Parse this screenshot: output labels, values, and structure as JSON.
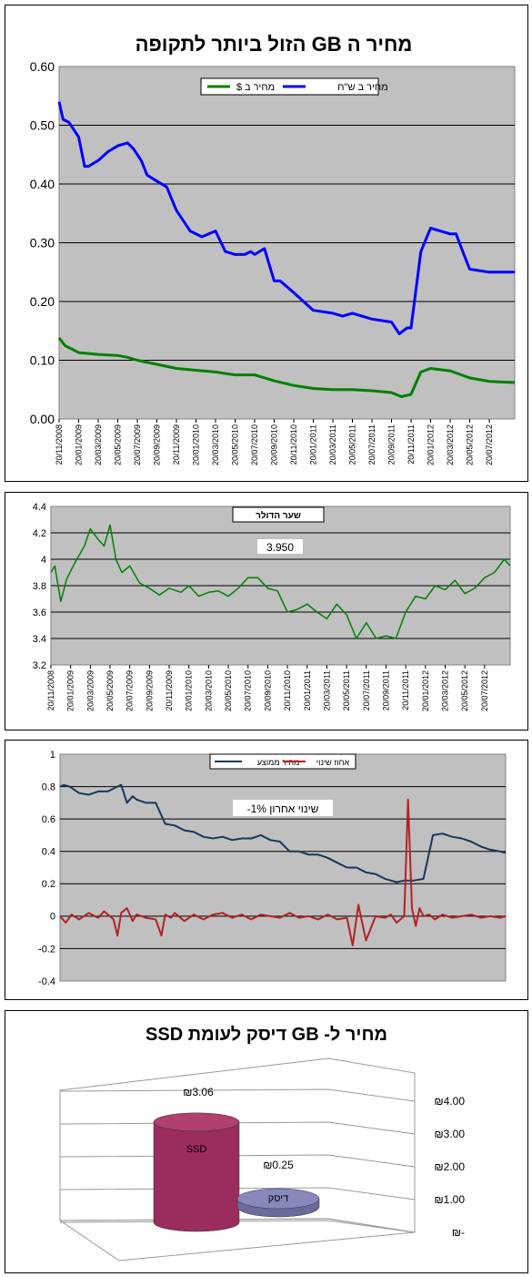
{
  "chart_data": [
    {
      "type": "line",
      "title": "מחיר ה GB הזול ביותר לתקופה",
      "ylim": [
        0,
        0.6
      ],
      "yticks": [
        "0.00",
        "0.10",
        "0.20",
        "0.30",
        "0.40",
        "0.50",
        "0.60"
      ],
      "xticks": [
        "20/11/2008",
        "20/01/2009",
        "20/03/2009",
        "20/05/2009",
        "20/07/2009",
        "20/09/2009",
        "20/11/2009",
        "20/01/2010",
        "20/03/2010",
        "20/05/2010",
        "20/07/2010",
        "20/09/2010",
        "20/11/2010",
        "20/01/2011",
        "20/03/2011",
        "20/05/2011",
        "20/07/2011",
        "20/09/2011",
        "20/11/2011",
        "20/01/2012",
        "20/03/2012",
        "20/05/2012",
        "20/07/2012"
      ],
      "grid": true,
      "legend": "top-center",
      "series": [
        {
          "name": "מחיר ב ש\"ח",
          "color": "#0000ff",
          "x": [
            0,
            0.2,
            0.5,
            1,
            1.3,
            1.5,
            2,
            2.5,
            3,
            3.5,
            3.8,
            4.2,
            4.5,
            5,
            5.5,
            6,
            6.3,
            6.7,
            7,
            7.3,
            8,
            8.5,
            9,
            9.5,
            9.8,
            10,
            10.5,
            11,
            11.3,
            12,
            13,
            14,
            14.5,
            15,
            16,
            17,
            17.4,
            17.8,
            18,
            18.5,
            19,
            20,
            20.3,
            20.7,
            21,
            22,
            22.5,
            23.3
          ],
          "values": [
            0.54,
            0.51,
            0.505,
            0.48,
            0.43,
            0.43,
            0.44,
            0.455,
            0.465,
            0.47,
            0.46,
            0.44,
            0.415,
            0.405,
            0.395,
            0.355,
            0.34,
            0.32,
            0.315,
            0.31,
            0.32,
            0.285,
            0.28,
            0.28,
            0.285,
            0.28,
            0.29,
            0.235,
            0.235,
            0.215,
            0.185,
            0.18,
            0.175,
            0.18,
            0.17,
            0.165,
            0.145,
            0.155,
            0.155,
            0.285,
            0.325,
            0.315,
            0.315,
            0.28,
            0.255,
            0.25,
            0.25,
            0.25
          ]
        },
        {
          "name": "מחיר ב $",
          "color": "#008000",
          "x": [
            0,
            0.3,
            1,
            2,
            3,
            3.5,
            4,
            5,
            6,
            7,
            8,
            9,
            10,
            11,
            12,
            13,
            14,
            15,
            16,
            17,
            17.5,
            18,
            18.5,
            19,
            20,
            21,
            22,
            23.3
          ],
          "values": [
            0.138,
            0.125,
            0.113,
            0.11,
            0.108,
            0.105,
            0.1,
            0.093,
            0.086,
            0.083,
            0.08,
            0.075,
            0.075,
            0.065,
            0.057,
            0.052,
            0.05,
            0.05,
            0.048,
            0.045,
            0.038,
            0.042,
            0.08,
            0.086,
            0.082,
            0.07,
            0.064,
            0.062
          ]
        }
      ]
    },
    {
      "type": "line",
      "title": "שער הדולר",
      "annotation": "3.950",
      "ylim": [
        3.2,
        4.4
      ],
      "yticks": [
        "3.2",
        "3.4",
        "3.6",
        "3.8",
        "4",
        "4.2",
        "4.4"
      ],
      "xticks": [
        "20/11/2008",
        "20/01/2009",
        "20/03/2009",
        "20/05/2009",
        "20/07/2009",
        "20/09/2009",
        "20/11/2009",
        "20/01/2010",
        "20/03/2010",
        "20/05/2010",
        "20/07/2010",
        "20/09/2010",
        "20/11/2010",
        "20/01/2011",
        "20/03/2011",
        "20/05/2011",
        "20/07/2011",
        "20/09/2011",
        "20/11/2011",
        "20/01/2012",
        "20/03/2012",
        "20/05/2012",
        "20/07/2012"
      ],
      "grid": true,
      "series": [
        {
          "name": "",
          "color": "#008000",
          "x": [
            0,
            0.2,
            0.5,
            0.8,
            1.2,
            1.7,
            2,
            2.4,
            2.7,
            3,
            3.3,
            3.6,
            4,
            4.5,
            5,
            5.5,
            6,
            6.6,
            7,
            7.5,
            8,
            8.5,
            9,
            9.5,
            10,
            10.5,
            11,
            11.5,
            12,
            12.5,
            13,
            13.5,
            14,
            14.5,
            15,
            15.5,
            16,
            16.5,
            17,
            17.5,
            18,
            18.5,
            19,
            19.5,
            20,
            20.5,
            21,
            21.5,
            22,
            22.5,
            23,
            23.3
          ],
          "values": [
            3.9,
            3.95,
            3.68,
            3.85,
            3.97,
            4.1,
            4.23,
            4.15,
            4.1,
            4.26,
            4.0,
            3.9,
            3.95,
            3.82,
            3.78,
            3.73,
            3.78,
            3.75,
            3.8,
            3.72,
            3.75,
            3.76,
            3.72,
            3.78,
            3.86,
            3.86,
            3.78,
            3.76,
            3.6,
            3.62,
            3.66,
            3.6,
            3.55,
            3.66,
            3.58,
            3.4,
            3.52,
            3.4,
            3.42,
            3.4,
            3.6,
            3.72,
            3.7,
            3.8,
            3.77,
            3.84,
            3.74,
            3.78,
            3.86,
            3.9,
            4.0,
            3.95
          ]
        }
      ]
    },
    {
      "type": "line",
      "annotation": "שינוי אחרון  1%-",
      "ylim": [
        -0.4,
        1
      ],
      "yticks": [
        "-0.4",
        "-0.2",
        "0",
        "0.2",
        "0.4",
        "0.6",
        "0.8",
        "1"
      ],
      "grid": true,
      "legend": "top-right",
      "series": [
        {
          "name": "מחיר ממוצע",
          "color": "#17365d",
          "x": [
            0,
            0.2,
            0.5,
            1,
            1.5,
            2,
            2.5,
            3,
            3.2,
            3.5,
            3.8,
            4,
            4.5,
            5,
            5.5,
            6,
            6.5,
            7,
            7.5,
            8,
            8.5,
            9,
            9.5,
            10,
            10.5,
            11,
            11.5,
            12,
            12.5,
            13,
            13.5,
            14,
            14.5,
            15,
            15.5,
            16,
            16.5,
            17,
            17.3,
            17.6,
            18,
            18.5,
            19,
            19.5,
            20,
            20.5,
            21,
            21.5,
            22,
            22.5,
            23,
            23.3
          ],
          "values": [
            0.8,
            0.81,
            0.8,
            0.76,
            0.75,
            0.77,
            0.77,
            0.8,
            0.81,
            0.7,
            0.74,
            0.72,
            0.7,
            0.7,
            0.57,
            0.56,
            0.53,
            0.52,
            0.49,
            0.48,
            0.49,
            0.47,
            0.48,
            0.48,
            0.5,
            0.47,
            0.46,
            0.4,
            0.4,
            0.38,
            0.38,
            0.36,
            0.33,
            0.3,
            0.3,
            0.27,
            0.26,
            0.23,
            0.22,
            0.21,
            0.22,
            0.22,
            0.23,
            0.5,
            0.51,
            0.49,
            0.48,
            0.46,
            0.43,
            0.41,
            0.4,
            0.39
          ]
        },
        {
          "name": "אחוז שינוי",
          "color": "#b22222",
          "x": [
            0,
            0.3,
            0.6,
            1,
            1.5,
            2,
            2.3,
            2.8,
            3,
            3.2,
            3.5,
            3.8,
            4,
            4.5,
            5,
            5.3,
            5.5,
            5.8,
            6,
            6.5,
            7,
            7.5,
            8,
            8.5,
            9,
            9.5,
            10,
            10.5,
            11,
            11.5,
            12,
            12.5,
            13,
            13.5,
            14,
            14.5,
            15,
            15.3,
            15.6,
            16,
            16.5,
            17,
            17.3,
            17.6,
            18,
            18.2,
            18.4,
            18.6,
            18.8,
            19,
            19.3,
            19.6,
            20,
            20.5,
            21,
            21.5,
            22,
            22.5,
            23,
            23.3
          ],
          "values": [
            0,
            -0.04,
            0.01,
            -0.02,
            0.02,
            -0.01,
            0.03,
            -0.02,
            -0.12,
            0.02,
            0.05,
            -0.03,
            0.01,
            -0.01,
            -0.02,
            -0.12,
            0.01,
            -0.01,
            0.02,
            -0.03,
            0.01,
            -0.02,
            0.01,
            0.02,
            -0.01,
            0.01,
            -0.02,
            0.01,
            0.0,
            -0.01,
            0.02,
            -0.01,
            0.0,
            -0.02,
            0.01,
            -0.02,
            -0.01,
            -0.18,
            0.07,
            -0.15,
            0.0,
            -0.01,
            0.01,
            -0.04,
            0.0,
            0.72,
            0.05,
            -0.06,
            0.05,
            0.0,
            0.01,
            -0.02,
            0.01,
            -0.01,
            0.0,
            0.01,
            -0.01,
            0.0,
            -0.01,
            0.0
          ]
        }
      ]
    },
    {
      "type": "bar",
      "title": "מחיר ל- GB דיסק לעומת  SSD",
      "categories": [
        "SSD",
        "דיסק"
      ],
      "values": [
        3.06,
        0.25
      ],
      "value_labels": [
        "₪3.06",
        "₪0.25"
      ],
      "ylim": [
        0,
        4
      ],
      "yticks": [
        "₪-",
        "₪1.00",
        "₪2.00",
        "₪3.00",
        "₪4.00"
      ],
      "colors": [
        "#9b2c5e",
        "#6a6a9c"
      ]
    }
  ]
}
